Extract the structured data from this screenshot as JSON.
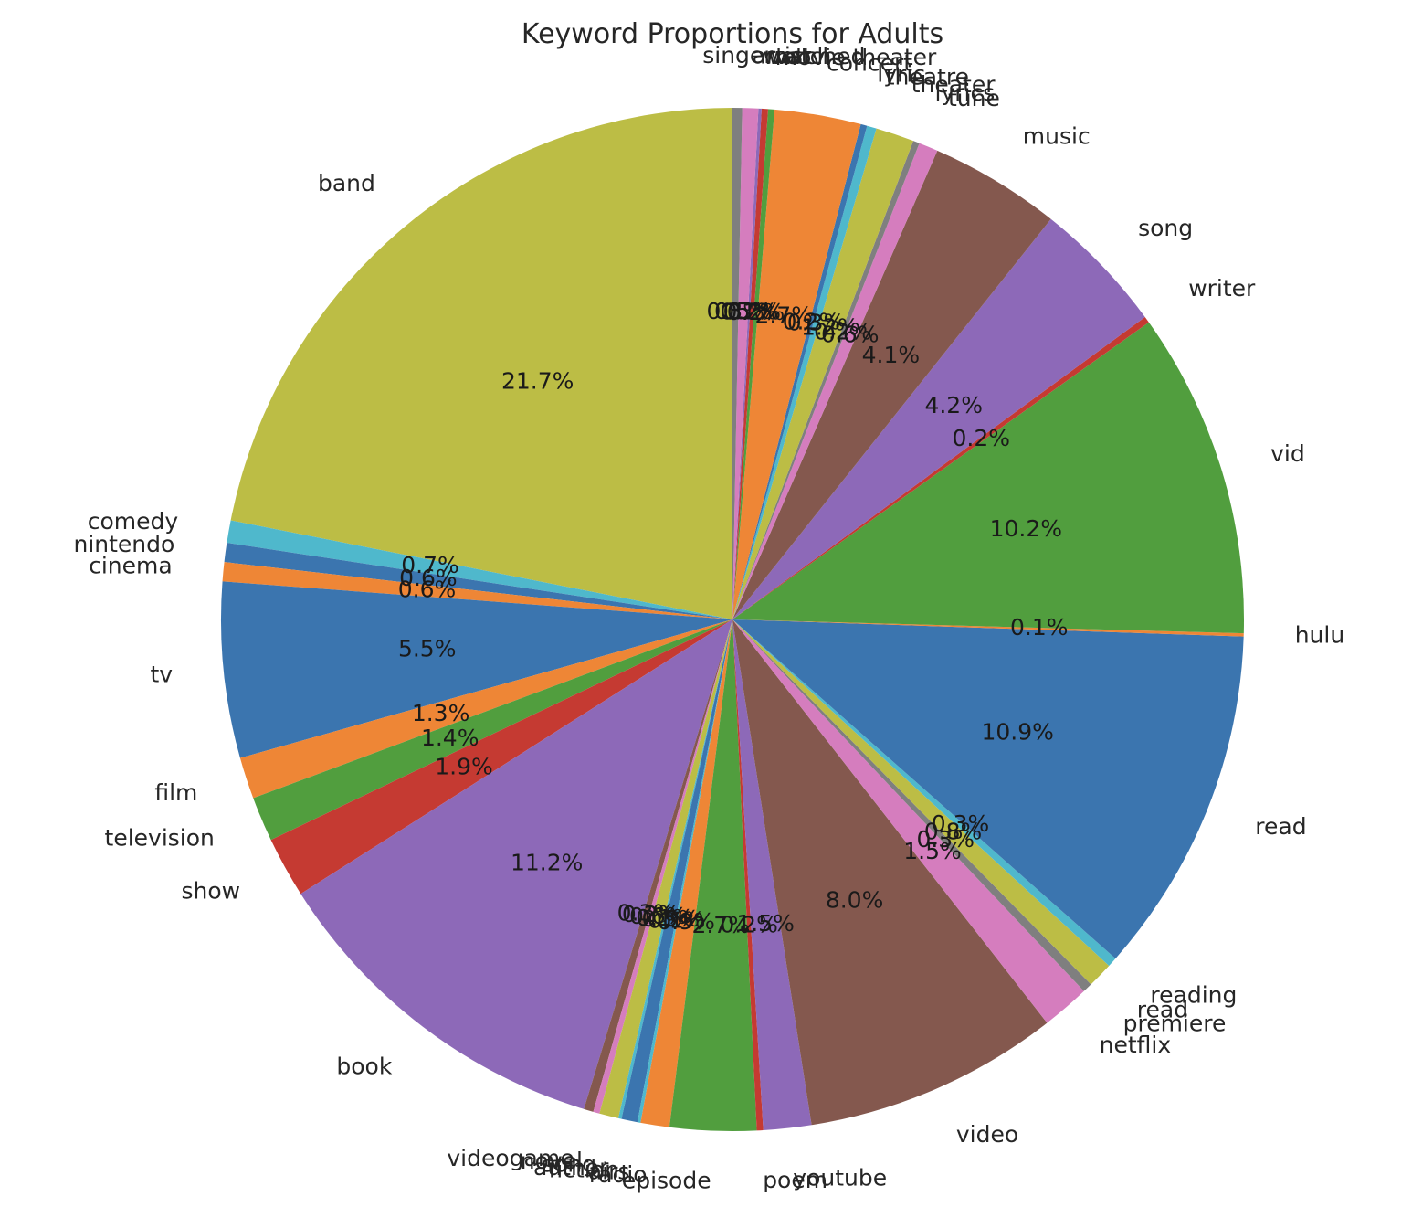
{
  "chart_data": {
    "type": "pie",
    "title": "Keyword Proportions for Adults",
    "start_angle_deg": 90,
    "direction": "counterclockwise",
    "autopct_format": "{:.1f}%",
    "slices": [
      {
        "label": "band",
        "pct": 21.7,
        "color": "#bcbd45"
      },
      {
        "label": "comedy",
        "pct": 0.7,
        "color": "#4fb8cc"
      },
      {
        "label": "nintendo",
        "pct": 0.6,
        "color": "#3b75af"
      },
      {
        "label": "cinema",
        "pct": 0.6,
        "color": "#ee8636"
      },
      {
        "label": "tv",
        "pct": 5.5,
        "color": "#3b75af"
      },
      {
        "label": "film",
        "pct": 1.3,
        "color": "#ee8636"
      },
      {
        "label": "television",
        "pct": 1.4,
        "color": "#519e3e"
      },
      {
        "label": "show",
        "pct": 1.9,
        "color": "#c53a32"
      },
      {
        "label": "book",
        "pct": 11.2,
        "color": "#8d69b8"
      },
      {
        "label": "videogame",
        "pct": 0.3,
        "color": "#84584e"
      },
      {
        "label": "novel",
        "pct": 0.2,
        "color": "#d57dbe"
      },
      {
        "label": "song",
        "pct": 0.6,
        "color": "#bcbd45"
      },
      {
        "label": "author",
        "pct": 0.1,
        "color": "#4fb8cc"
      },
      {
        "label": "fiction",
        "pct": 0.5,
        "color": "#3b75af"
      },
      {
        "label": "airs",
        "pct": 0.1,
        "color": "#4fb8cc"
      },
      {
        "label": "radio",
        "pct": 0.9,
        "color": "#ee8636"
      },
      {
        "label": "episode",
        "pct": 2.7,
        "color": "#519e3e"
      },
      {
        "label": "poem",
        "pct": 0.2,
        "color": "#c53a32"
      },
      {
        "label": "youtube",
        "pct": 1.5,
        "color": "#8d69b8"
      },
      {
        "label": "video",
        "pct": 8.0,
        "color": "#84584e"
      },
      {
        "label": "netflix",
        "pct": 1.5,
        "color": "#d57dbe"
      },
      {
        "label": "premiere",
        "pct": 0.3,
        "color": "#7f7f7f"
      },
      {
        "label": "read",
        "pct": 0.8,
        "color": "#bcbd45"
      },
      {
        "label": "reading",
        "pct": 0.3,
        "color": "#4fb8cc"
      },
      {
        "label": "read",
        "pct": 10.9,
        "color": "#3b75af"
      },
      {
        "label": "hulu",
        "pct": 0.1,
        "color": "#ee8636"
      },
      {
        "label": "vid",
        "pct": 10.2,
        "color": "#519e3e"
      },
      {
        "label": "writer",
        "pct": 0.2,
        "color": "#c53a32"
      },
      {
        "label": "song",
        "pct": 4.2,
        "color": "#8d69b8"
      },
      {
        "label": "music",
        "pct": 4.1,
        "color": "#84584e"
      },
      {
        "label": "tune",
        "pct": 0.6,
        "color": "#d57dbe"
      },
      {
        "label": "lyrics",
        "pct": 0.2,
        "color": "#7f7f7f"
      },
      {
        "label": "theater",
        "pct": 1.2,
        "color": "#bcbd45"
      },
      {
        "label": "theatre",
        "pct": 0.3,
        "color": "#4fb8cc"
      },
      {
        "label": "lyric",
        "pct": 0.2,
        "color": "#3b75af"
      },
      {
        "label": "concert",
        "pct": 2.7,
        "color": "#ee8636"
      },
      {
        "label": "movie theater",
        "pct": 0.2,
        "color": "#519e3e"
      },
      {
        "label": "watched",
        "pct": 0.2,
        "color": "#c53a32"
      },
      {
        "label": "watch",
        "pct": 0.1,
        "color": "#8d69b8"
      },
      {
        "label": "artist",
        "pct": 0.5,
        "color": "#d57dbe"
      },
      {
        "label": "singer",
        "pct": 0.3,
        "color": "#7f7f7f"
      }
    ]
  }
}
